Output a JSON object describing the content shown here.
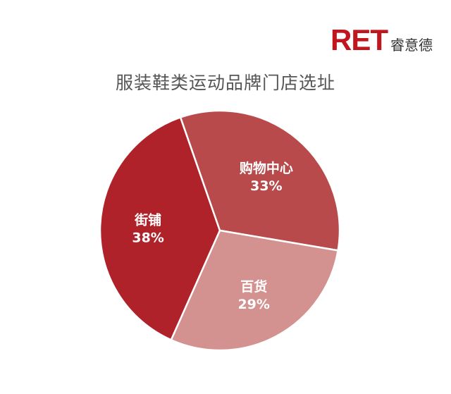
{
  "logo": {
    "mark": "RET",
    "text": "睿意德",
    "color": "#c0161e"
  },
  "chart_data": {
    "type": "pie",
    "title": "服装鞋类运动品牌门店选址",
    "slices": [
      {
        "label": "街铺",
        "value": 38,
        "value_label": "38%",
        "color": "#b0222a"
      },
      {
        "label": "购物中心",
        "value": 33,
        "value_label": "33%",
        "color": "#b84a4c"
      },
      {
        "label": "百货",
        "value": 29,
        "value_label": "29%",
        "color": "#d39190"
      }
    ],
    "start_angle_deg": 204,
    "direction": "clockwise",
    "legend": "none"
  }
}
